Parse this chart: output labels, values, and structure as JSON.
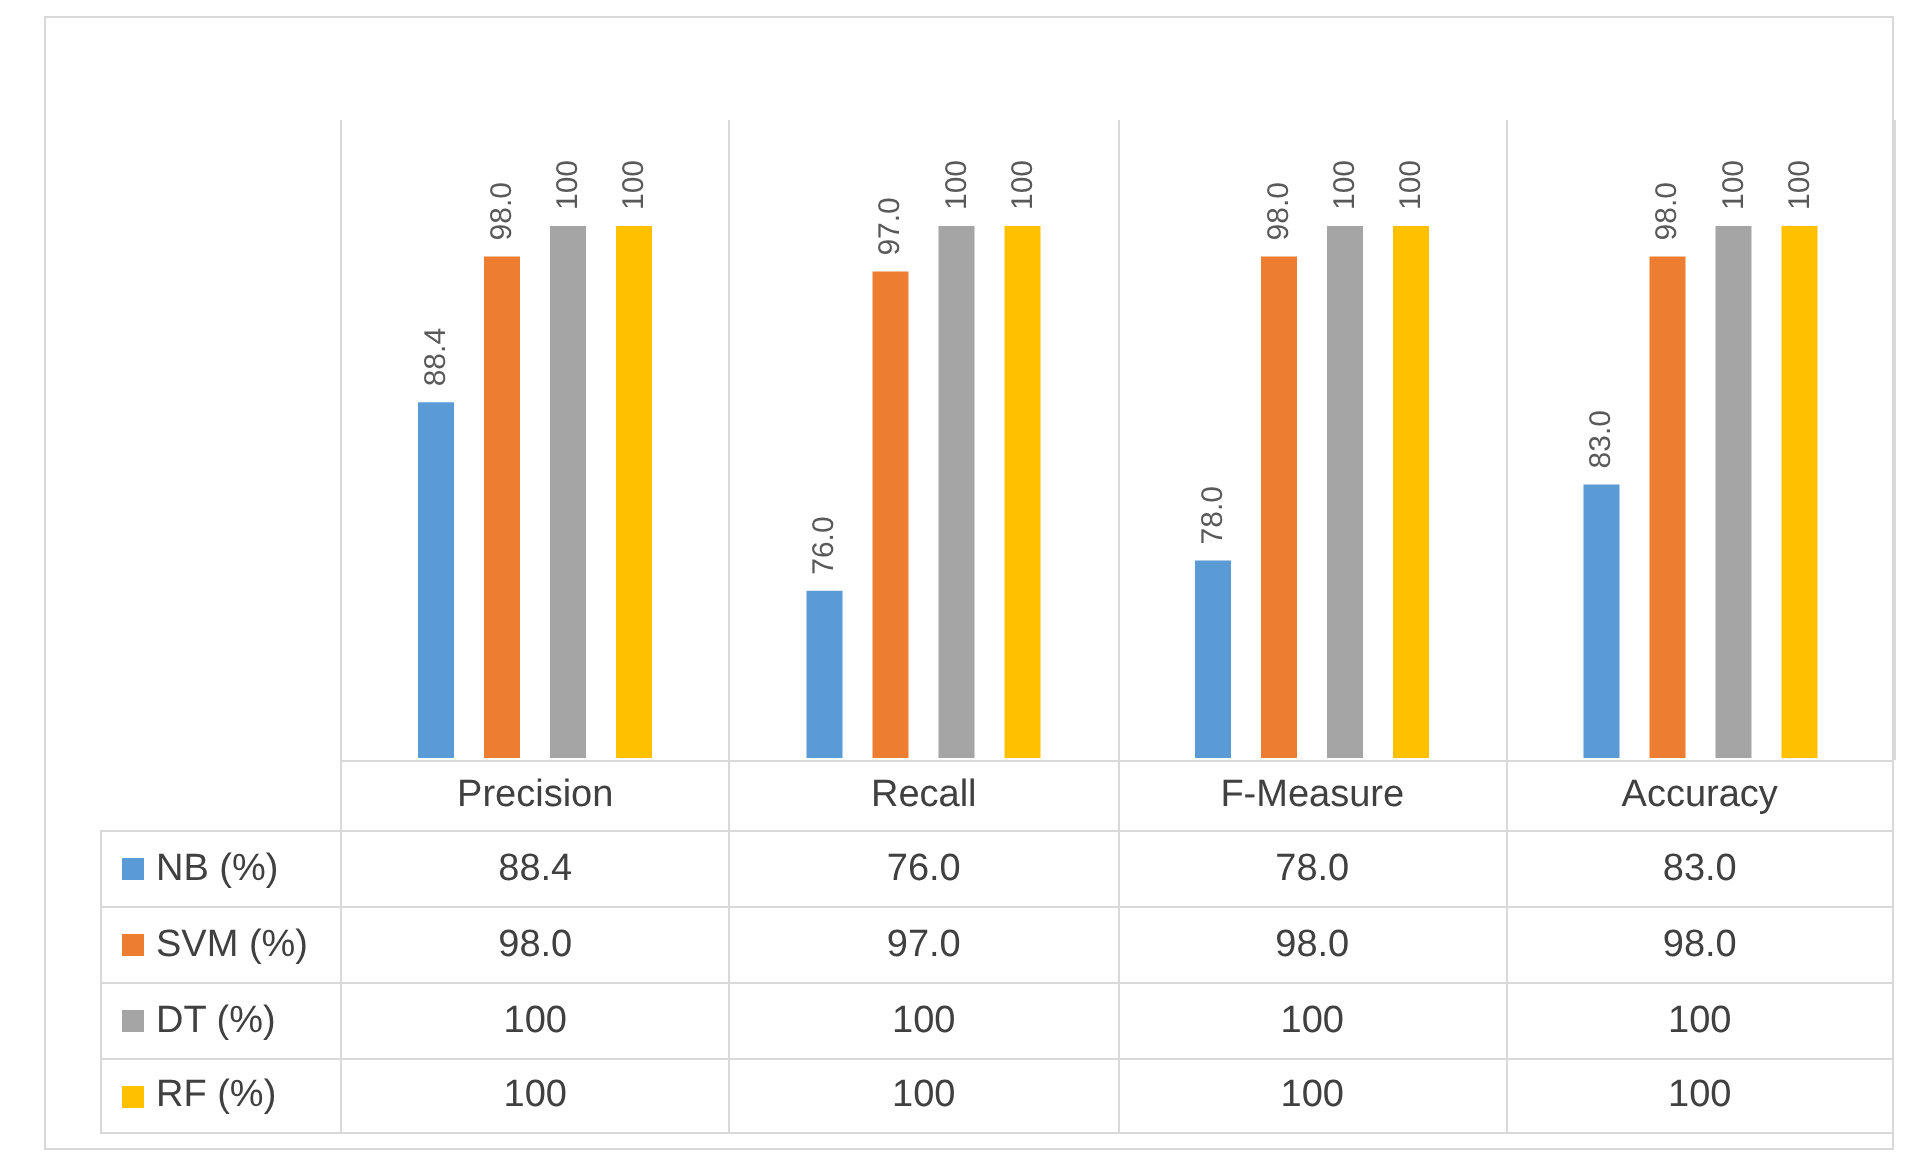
{
  "chart_data": {
    "type": "bar",
    "categories": [
      "Precision",
      "Recall",
      "F-Measure",
      "Accuracy"
    ],
    "ylim": [
      65,
      100
    ],
    "legend": "bottom",
    "grid": "x",
    "series": [
      {
        "name": "NB (%)",
        "color": "#5b9bd5",
        "values": [
          88.4,
          76.0,
          78.0,
          83.0
        ],
        "value_labels": [
          "88.4",
          "76.0",
          "78.0",
          "83.0"
        ]
      },
      {
        "name": "SVM (%)",
        "color": "#ed7d31",
        "values": [
          98.0,
          97.0,
          98.0,
          98.0
        ],
        "value_labels": [
          "98.0",
          "97.0",
          "98.0",
          "98.0"
        ]
      },
      {
        "name": "DT (%)",
        "color": "#a5a5a5",
        "values": [
          100,
          100,
          100,
          100
        ],
        "value_labels": [
          "100",
          "100",
          "100",
          "100"
        ]
      },
      {
        "name": "RF (%)",
        "color": "#ffc000",
        "values": [
          100,
          100,
          100,
          100
        ],
        "value_labels": [
          "100",
          "100",
          "100",
          "100"
        ]
      }
    ]
  }
}
